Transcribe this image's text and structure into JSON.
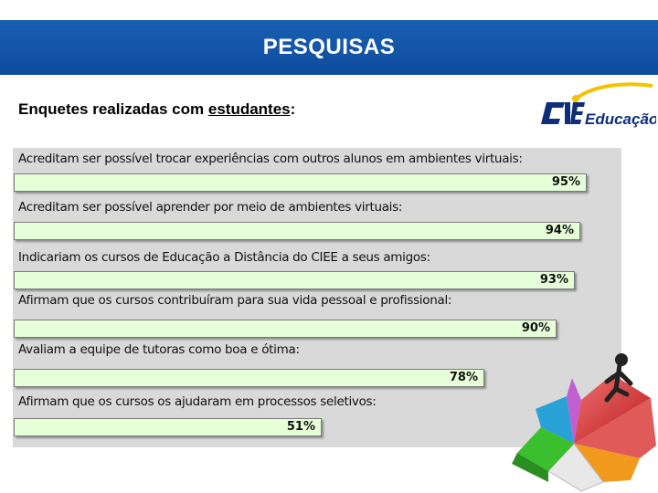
{
  "header": {
    "title": "PESQUISAS"
  },
  "subtitle": {
    "prefix": "Enquetes realizadas com ",
    "underlined": "estudantes",
    "suffix": ":"
  },
  "logo": {
    "text": "Educação",
    "icon": "ciee-logo"
  },
  "survey": {
    "items": [
      {
        "label": "Acreditam ser possível trocar experiências com outros alunos em ambientes virtuais:",
        "value": "95%",
        "percent": 95
      },
      {
        "label": "Acreditam ser possível aprender por meio de ambientes virtuais:",
        "value": "94%",
        "percent": 94
      },
      {
        "label": "Indicariam os cursos de Educação a Distância do CIEE a seus amigos:",
        "value": "93%",
        "percent": 93
      },
      {
        "label": "Afirmam que os cursos contribuíram para sua vida pessoal e profissional:",
        "value": "90%",
        "percent": 90
      },
      {
        "label": "Avaliam a equipe de tutoras como boa e ótima:",
        "value": "78%",
        "percent": 78
      },
      {
        "label": "Afirmam que os cursos os ajudaram em processos seletivos:",
        "value": "51%",
        "percent": 51
      }
    ]
  },
  "decoration": {
    "icon": "pie-chart-person-icon"
  }
}
